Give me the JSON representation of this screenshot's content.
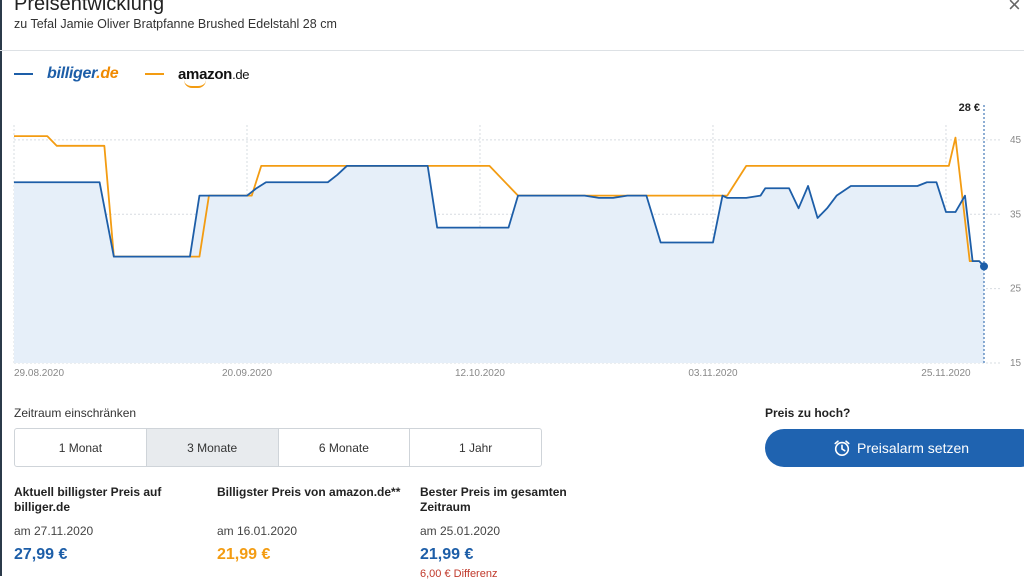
{
  "header": {
    "title": "Preisentwicklung",
    "subtitle": "zu Tefal Jamie Oliver Bratpfanne Brushed Edelstahl 28 cm",
    "close_icon": "×"
  },
  "legend": {
    "billiger": {
      "name": "billiger.de",
      "brand_main": "billiger",
      "brand_dot": ".",
      "brand_tld": "de",
      "color": "#1d5ea8"
    },
    "amazon": {
      "name": "amazon.de",
      "brand_main": "amazon",
      "brand_tld": ".de",
      "color": "#f39c12"
    }
  },
  "chart_data": {
    "type": "line",
    "x_ticks": [
      "29.08.2020",
      "20.09.2020",
      "12.10.2020",
      "03.11.2020",
      "25.11.2020"
    ],
    "y_ticks": [
      "45",
      "35",
      "25",
      "15"
    ],
    "ylim": [
      15,
      47
    ],
    "current_label": "28 €",
    "series": [
      {
        "name": "amazon.de",
        "color": "#f39c12",
        "points": [
          [
            0,
            45.5
          ],
          [
            3.5,
            45.5
          ],
          [
            4.5,
            44.2
          ],
          [
            9.5,
            44.2
          ],
          [
            10.5,
            29.3
          ],
          [
            19.5,
            29.3
          ],
          [
            20.5,
            37.5
          ],
          [
            25,
            37.5
          ],
          [
            26,
            41.5
          ],
          [
            34,
            41.5
          ],
          [
            36,
            41.5
          ],
          [
            50,
            41.5
          ],
          [
            53,
            37.5
          ],
          [
            66,
            37.5
          ],
          [
            71.5,
            37.5
          ],
          [
            75,
            37.5
          ],
          [
            77,
            41.5
          ],
          [
            98.3,
            41.5
          ],
          [
            99,
            45.3
          ],
          [
            100.5,
            28.7
          ],
          [
            101.5,
            28.7
          ]
        ]
      },
      {
        "name": "billiger.de",
        "color": "#1d5ea8",
        "area_fill": "#e6eff9",
        "points": [
          [
            0,
            39.3
          ],
          [
            9,
            39.3
          ],
          [
            10.5,
            29.3
          ],
          [
            18.5,
            29.3
          ],
          [
            19.5,
            37.5
          ],
          [
            24.5,
            37.5
          ],
          [
            25.5,
            38.5
          ],
          [
            26.5,
            39.3
          ],
          [
            33,
            39.3
          ],
          [
            34,
            40.3
          ],
          [
            35,
            41.5
          ],
          [
            43.5,
            41.5
          ],
          [
            44.5,
            33.2
          ],
          [
            52,
            33.2
          ],
          [
            53,
            37.5
          ],
          [
            60,
            37.5
          ],
          [
            61.5,
            37.2
          ],
          [
            63,
            37.2
          ],
          [
            64.5,
            37.5
          ],
          [
            66.5,
            37.5
          ],
          [
            68,
            31.2
          ],
          [
            73.5,
            31.2
          ],
          [
            74.5,
            37.5
          ],
          [
            75,
            37.2
          ],
          [
            77,
            37.2
          ],
          [
            78.5,
            37.5
          ],
          [
            79,
            38.5
          ],
          [
            81.5,
            38.5
          ],
          [
            82.5,
            35.8
          ],
          [
            83.5,
            38.8
          ],
          [
            84.5,
            34.5
          ],
          [
            85.5,
            35.8
          ],
          [
            86.5,
            37.5
          ],
          [
            88,
            38.8
          ],
          [
            95,
            38.8
          ],
          [
            96,
            39.3
          ],
          [
            97,
            39.3
          ],
          [
            98,
            35.3
          ],
          [
            99,
            35.3
          ],
          [
            100,
            37.5
          ],
          [
            100.8,
            28.7
          ],
          [
            101.5,
            28.7
          ],
          [
            102,
            27.99
          ]
        ]
      }
    ]
  },
  "range": {
    "label": "Zeitraum einschränken",
    "options": [
      "1 Monat",
      "3 Monate",
      "6 Monate",
      "1 Jahr"
    ],
    "selected": "3 Monate"
  },
  "alert": {
    "question": "Preis zu hoch?",
    "button_label": "Preisalarm setzen",
    "icon": "alarm-clock-icon"
  },
  "stats": [
    {
      "heading": "Aktuell billigster Preis auf billiger.de",
      "date": "am 27.11.2020",
      "price": "27,99 €",
      "color": "#1d5ea8"
    },
    {
      "heading": "Billigster Preis von amazon.de**",
      "date": "am 16.01.2020",
      "price": "21,99 €",
      "color": "#f39c12"
    },
    {
      "heading": "Bester Preis im gesamten Zeitraum",
      "date": "am 25.01.2020",
      "price": "21,99 €",
      "difference": "6,00 € Differenz",
      "color": "#1d5ea8"
    }
  ]
}
